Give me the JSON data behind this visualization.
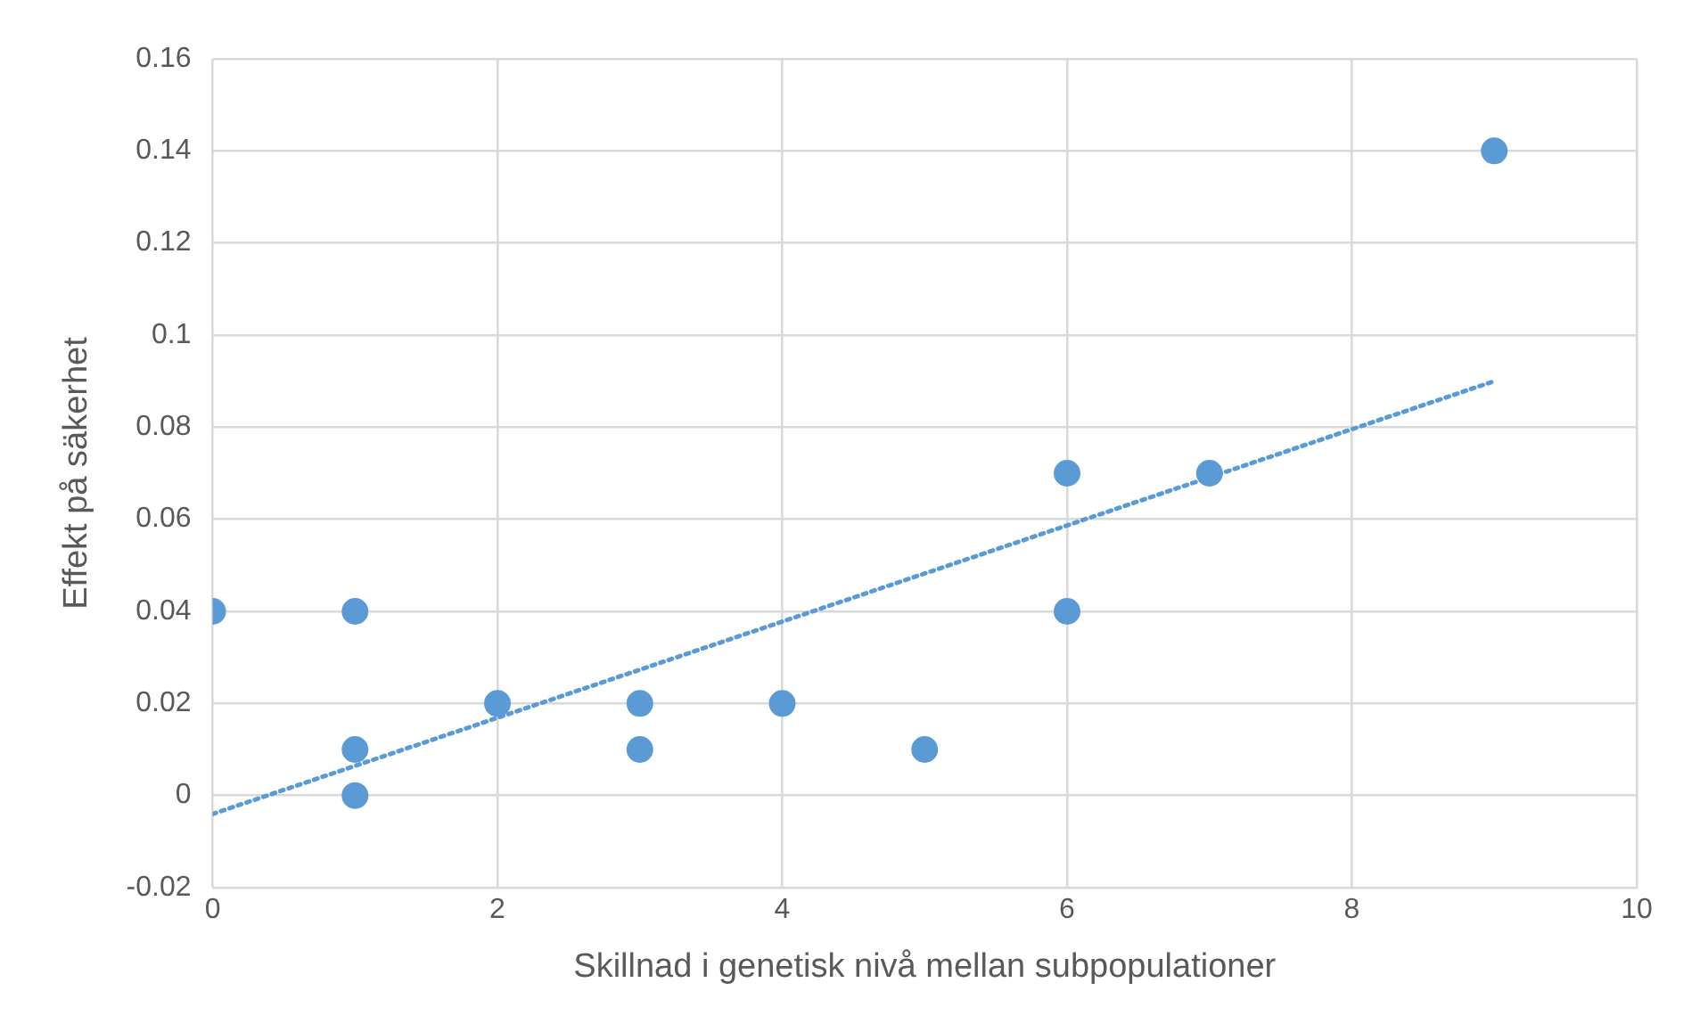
{
  "chart_data": {
    "type": "scatter",
    "xlabel": "Skillnad i genetisk nivå mellan subpopulationer",
    "ylabel": "Effekt på säkerhet",
    "series": [
      {
        "type": "scatter",
        "color": "#5b9bd5",
        "marker": "circle",
        "x": [
          0,
          1,
          1,
          1,
          2,
          3,
          3,
          4,
          5,
          6,
          6,
          7,
          9
        ],
        "values": [
          0.04,
          0.04,
          0.01,
          0,
          0.02,
          0.02,
          0.01,
          0.02,
          0.01,
          0.07,
          0.04,
          0.07,
          0.14
        ]
      },
      {
        "type": "line",
        "color": "#5b9bd5",
        "marker": "none",
        "line_style": "dotted",
        "x": [
          0,
          9
        ],
        "values": [
          -0.004,
          0.09
        ]
      }
    ],
    "xlim": [
      0,
      10
    ],
    "xticks": [
      0,
      2,
      4,
      6,
      8,
      10
    ],
    "ylim": [
      -0.02,
      0.16
    ],
    "yticks": [
      -0.02,
      0,
      0.02,
      0.04,
      0.06,
      0.08,
      0.1,
      0.12,
      0.14,
      0.16
    ],
    "grid": true,
    "legend": false
  }
}
